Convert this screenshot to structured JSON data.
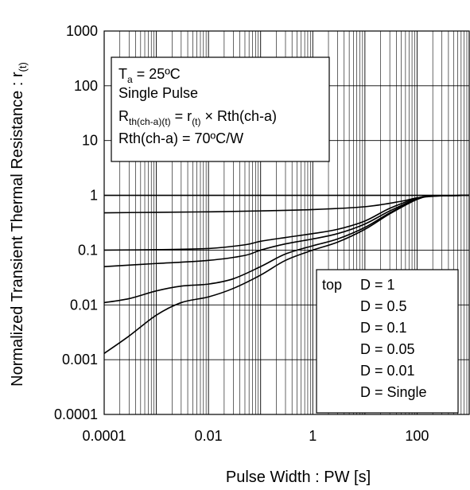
{
  "chart_data": {
    "type": "line",
    "xlabel": "Pulse Width : PW [s]",
    "ylabel_main": "Normalized Transient Thermal Resistance : r",
    "ylabel_sub": "(t)",
    "x_scale": "log",
    "y_scale": "log",
    "xlim": [
      0.0001,
      1000
    ],
    "ylim": [
      0.0001,
      1000
    ],
    "x_ticks": [
      {
        "value": 0.0001,
        "label": "0.0001"
      },
      {
        "value": 0.01,
        "label": "0.01"
      },
      {
        "value": 1,
        "label": "1"
      },
      {
        "value": 100,
        "label": "100"
      }
    ],
    "y_ticks": [
      {
        "value": 1000,
        "label": "1000"
      },
      {
        "value": 100,
        "label": "100"
      },
      {
        "value": 10,
        "label": "10"
      },
      {
        "value": 1,
        "label": "1"
      },
      {
        "value": 0.1,
        "label": "0.1"
      },
      {
        "value": 0.01,
        "label": "0.01"
      },
      {
        "value": 0.001,
        "label": "0.001"
      },
      {
        "value": 0.0001,
        "label": "0.0001"
      }
    ],
    "grid": true,
    "conditions_box": {
      "line1_main": "T",
      "line1_sub": "a",
      "line1_rest": " = 25ºC",
      "line2": "Single Pulse",
      "line3_main": "R",
      "line3_sub": "th(ch-a)(t)",
      "line3_mid": " = r",
      "line3_sub2": "(t)",
      "line3_rest": " × Rth(ch-a)",
      "line4": "Rth(ch-a) = 70ºC/W"
    },
    "legend": {
      "placement": "bottom-right",
      "prefix": "top",
      "entries": [
        "D = 1",
        "D = 0.5",
        "D = 0.1",
        "D = 0.05",
        "D = 0.01",
        "D = Single"
      ]
    },
    "series": [
      {
        "name": "D = 1",
        "x": [
          0.0001,
          1000
        ],
        "y": [
          1,
          1
        ]
      },
      {
        "name": "D = 0.5",
        "x": [
          0.0001,
          0.001,
          0.01,
          0.1,
          1,
          10,
          50,
          100,
          200,
          1000
        ],
        "y": [
          0.48,
          0.49,
          0.5,
          0.52,
          0.55,
          0.62,
          0.78,
          0.9,
          0.97,
          1
        ]
      },
      {
        "name": "D = 0.1",
        "x": [
          0.0001,
          0.001,
          0.01,
          0.05,
          0.1,
          0.3,
          1,
          3,
          10,
          30,
          100,
          200,
          1000
        ],
        "y": [
          0.1,
          0.102,
          0.107,
          0.125,
          0.145,
          0.17,
          0.2,
          0.24,
          0.34,
          0.58,
          0.88,
          0.97,
          1
        ]
      },
      {
        "name": "D = 0.05",
        "x": [
          0.0001,
          0.001,
          0.01,
          0.05,
          0.1,
          0.3,
          1,
          3,
          10,
          30,
          100,
          200,
          1000
        ],
        "y": [
          0.05,
          0.057,
          0.065,
          0.08,
          0.1,
          0.13,
          0.16,
          0.2,
          0.3,
          0.52,
          0.86,
          0.97,
          1
        ]
      },
      {
        "name": "D = 0.01",
        "x": [
          0.0001,
          0.0003,
          0.001,
          0.003,
          0.01,
          0.03,
          0.1,
          0.3,
          1,
          3,
          10,
          30,
          100,
          200,
          1000
        ],
        "y": [
          0.011,
          0.013,
          0.018,
          0.022,
          0.024,
          0.03,
          0.05,
          0.085,
          0.12,
          0.16,
          0.26,
          0.48,
          0.85,
          0.97,
          1
        ]
      },
      {
        "name": "D = Single",
        "x": [
          0.0001,
          0.0003,
          0.001,
          0.003,
          0.01,
          0.03,
          0.1,
          0.3,
          1,
          3,
          10,
          30,
          100,
          200,
          1000
        ],
        "y": [
          0.0013,
          0.0027,
          0.0065,
          0.011,
          0.014,
          0.02,
          0.035,
          0.065,
          0.1,
          0.14,
          0.24,
          0.46,
          0.84,
          0.96,
          1
        ]
      }
    ]
  }
}
